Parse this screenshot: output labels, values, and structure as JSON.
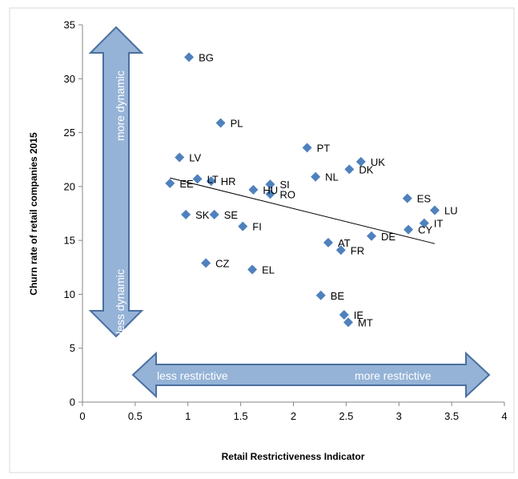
{
  "chart_data": {
    "type": "scatter",
    "xlabel": "Retail Restrictiveness Indicator",
    "ylabel": "Churn rate of retail companies 2015",
    "xlim": [
      0,
      4
    ],
    "ylim": [
      0,
      35
    ],
    "x_ticks": [
      "0",
      "0.5",
      "1",
      "1.5",
      "2",
      "2.5",
      "3",
      "3.5",
      "4"
    ],
    "y_ticks": [
      "0",
      "5",
      "10",
      "15",
      "20",
      "25",
      "30",
      "35"
    ],
    "grid": false,
    "marker_color": "#4f81bd",
    "points": [
      {
        "label": "BG",
        "x": 1.01,
        "y": 32.0
      },
      {
        "label": "PL",
        "x": 1.31,
        "y": 25.9
      },
      {
        "label": "LV",
        "x": 0.92,
        "y": 22.7
      },
      {
        "label": "PT",
        "x": 2.13,
        "y": 23.6
      },
      {
        "label": "UK",
        "x": 2.64,
        "y": 22.3
      },
      {
        "label": "DK",
        "x": 2.53,
        "y": 21.6
      },
      {
        "label": "NL",
        "x": 2.21,
        "y": 20.9
      },
      {
        "label": "LT",
        "x": 1.09,
        "y": 20.7
      },
      {
        "label": "HR",
        "x": 1.22,
        "y": 20.5
      },
      {
        "label": "EE",
        "x": 0.83,
        "y": 20.3
      },
      {
        "label": "SI",
        "x": 1.78,
        "y": 20.2
      },
      {
        "label": "HU",
        "x": 1.62,
        "y": 19.7
      },
      {
        "label": "RO",
        "x": 1.78,
        "y": 19.3
      },
      {
        "label": "ES",
        "x": 3.08,
        "y": 18.9
      },
      {
        "label": "LU",
        "x": 3.34,
        "y": 17.8
      },
      {
        "label": "SK",
        "x": 0.98,
        "y": 17.4
      },
      {
        "label": "SE",
        "x": 1.25,
        "y": 17.4
      },
      {
        "label": "IT",
        "x": 3.24,
        "y": 16.6
      },
      {
        "label": "FI",
        "x": 1.52,
        "y": 16.3
      },
      {
        "label": "CY",
        "x": 3.09,
        "y": 16.0
      },
      {
        "label": "DE",
        "x": 2.74,
        "y": 15.4
      },
      {
        "label": "AT",
        "x": 2.33,
        "y": 14.8
      },
      {
        "label": "FR",
        "x": 2.45,
        "y": 14.1
      },
      {
        "label": "CZ",
        "x": 1.17,
        "y": 12.9
      },
      {
        "label": "EL",
        "x": 1.61,
        "y": 12.3
      },
      {
        "label": "BE",
        "x": 2.26,
        "y": 9.9
      },
      {
        "label": "IE",
        "x": 2.48,
        "y": 8.1
      },
      {
        "label": "MT",
        "x": 2.52,
        "y": 7.4
      }
    ],
    "trendline": {
      "x": [
        0.83,
        3.34
      ],
      "y": [
        20.8,
        14.7
      ]
    },
    "annotations": {
      "more_dynamic": "more dynamic",
      "less_dynamic": "less dynamic",
      "less_restrictive": "less restrictive",
      "more_restrictive": "more restrictive"
    },
    "arrow_fill": "#95b3d7",
    "arrow_stroke": "#4a6fa0"
  }
}
